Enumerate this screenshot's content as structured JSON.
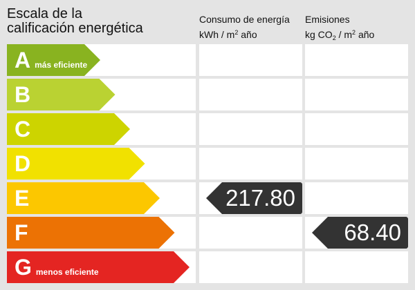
{
  "title_line1": "Escala de la",
  "title_line2": "calificación energética",
  "consumption": {
    "line1": "Consumo de energía",
    "unit_pre": "kWh / m",
    "unit_sup": "2",
    "unit_post": " año"
  },
  "emissions": {
    "line1": "Emisiones",
    "unit_pre": "kg CO",
    "unit_sub": "2",
    "unit_mid": " / m",
    "unit_sup": "2",
    "unit_post": " año"
  },
  "ratings": [
    {
      "letter": "A",
      "note": "más eficiente",
      "color": "#89b320"
    },
    {
      "letter": "B",
      "note": "",
      "color": "#bad232"
    },
    {
      "letter": "C",
      "note": "",
      "color": "#cdd400"
    },
    {
      "letter": "D",
      "note": "",
      "color": "#f1e100"
    },
    {
      "letter": "E",
      "note": "",
      "color": "#fcc700"
    },
    {
      "letter": "F",
      "note": "",
      "color": "#ec7204"
    },
    {
      "letter": "G",
      "note": "menos eficiente",
      "color": "#e42522"
    }
  ],
  "consumption_value": "217.80",
  "consumption_rating": "E",
  "emissions_value": "68.40",
  "emissions_rating": "F"
}
